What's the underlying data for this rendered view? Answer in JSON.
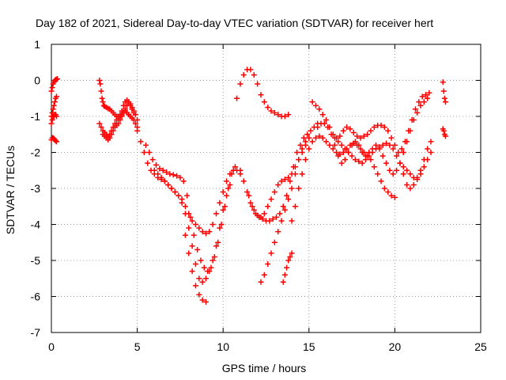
{
  "chart_data": {
    "type": "scatter",
    "title": "Day 182 of 2021, Sidereal Day-to-day VTEC variation (SDTVAR) for receiver hert",
    "xlabel": "GPS time / hours",
    "ylabel": "SDTVAR / TECUs",
    "xlim": [
      0,
      25
    ],
    "ylim": [
      -7,
      1
    ],
    "xticks": [
      0,
      5,
      10,
      15,
      20,
      25
    ],
    "yticks": [
      -7,
      -6,
      -5,
      -4,
      -3,
      -2,
      -1,
      0,
      1
    ],
    "xtick_labels": [
      "0",
      "5",
      "10",
      "15",
      "20",
      "25"
    ],
    "ytick_labels": [
      "-7",
      "-6",
      "-5",
      "-4",
      "-3",
      "-2",
      "-1",
      "0",
      "1"
    ],
    "grid": true,
    "marker": "+",
    "color": "#ff0000",
    "series": [
      {
        "name": "s1",
        "x": [
          0.0,
          0.05,
          0.1,
          0.15,
          0.2,
          0.25,
          0.3,
          0.35
        ],
        "y": [
          -0.3,
          -0.2,
          -0.1,
          -0.05,
          0.0,
          0.02,
          0.03,
          0.04
        ]
      },
      {
        "name": "s2",
        "x": [
          0.0,
          0.05,
          0.1,
          0.15,
          0.2,
          0.25,
          0.3
        ],
        "y": [
          -1.0,
          -0.9,
          -0.8,
          -0.7,
          -0.6,
          -0.5,
          -0.45
        ]
      },
      {
        "name": "s3",
        "x": [
          0.0,
          0.05,
          0.1,
          0.15,
          0.2,
          0.25,
          0.3
        ],
        "y": [
          -1.2,
          -1.1,
          -1.0,
          -1.0,
          -0.95,
          -0.95,
          -1.0
        ]
      },
      {
        "name": "s4",
        "x": [
          0.0,
          0.05,
          0.1,
          0.15,
          0.2,
          0.25,
          0.3
        ],
        "y": [
          -1.65,
          -1.6,
          -1.6,
          -1.62,
          -1.65,
          -1.68,
          -1.7
        ]
      },
      {
        "name": "s5",
        "x": [
          2.8,
          2.85,
          2.9,
          2.95,
          3.0,
          3.05,
          3.1,
          3.2,
          3.3,
          3.4,
          3.5,
          3.6,
          3.7,
          3.8,
          3.9,
          4.0,
          4.1,
          4.2,
          4.3,
          4.4,
          4.5,
          4.6,
          4.7,
          4.8,
          4.9,
          5.0
        ],
        "y": [
          0.0,
          -0.1,
          -0.3,
          -0.5,
          -0.6,
          -0.7,
          -0.72,
          -0.75,
          -0.78,
          -0.8,
          -0.85,
          -0.9,
          -0.95,
          -1.0,
          -1.0,
          -1.0,
          -0.95,
          -0.9,
          -0.85,
          -0.9,
          -0.95,
          -1.0,
          -1.05,
          -1.1,
          -1.2,
          -1.3
        ]
      },
      {
        "name": "s6",
        "x": [
          2.8,
          2.9,
          3.0,
          3.1,
          3.2,
          3.3,
          3.4,
          3.5,
          3.6,
          3.7,
          3.8,
          3.9,
          4.0,
          4.1,
          4.2,
          4.3,
          4.4,
          4.5,
          4.6,
          4.7,
          4.8
        ],
        "y": [
          -1.2,
          -1.3,
          -1.4,
          -1.45,
          -1.5,
          -1.55,
          -1.5,
          -1.4,
          -1.3,
          -1.2,
          -1.1,
          -1.05,
          -0.95,
          -0.85,
          -0.7,
          -0.6,
          -0.55,
          -0.6,
          -0.7,
          -0.8,
          -0.9
        ]
      },
      {
        "name": "s7",
        "x": [
          3.0,
          3.1,
          3.2,
          3.3,
          3.4,
          3.5,
          3.6,
          3.7,
          3.8,
          3.9,
          4.0,
          4.1,
          4.2,
          4.3,
          4.4,
          4.5,
          4.6,
          4.7,
          4.8,
          4.9,
          5.0
        ],
        "y": [
          -1.5,
          -1.55,
          -1.6,
          -1.65,
          -1.6,
          -1.5,
          -1.4,
          -1.3,
          -1.25,
          -1.2,
          -1.1,
          -1.0,
          -0.9,
          -0.8,
          -0.7,
          -0.6,
          -0.65,
          -0.75,
          -0.85,
          -0.95,
          -1.1
        ]
      },
      {
        "name": "s8",
        "x": [
          5.0,
          5.2,
          5.4,
          5.6,
          5.8,
          6.0,
          6.2,
          6.4,
          6.6,
          6.8,
          7.0,
          7.2,
          7.4,
          7.6,
          7.8,
          8.0,
          8.2,
          8.4,
          8.6,
          8.8,
          9.0,
          9.2,
          9.4,
          9.6,
          9.8,
          10.0,
          10.2,
          10.4,
          10.6,
          10.8,
          11.0
        ],
        "y": [
          -1.4,
          -1.7,
          -2.0,
          -2.3,
          -2.5,
          -2.6,
          -2.7,
          -2.75,
          -2.8,
          -2.9,
          -3.0,
          -3.1,
          -3.2,
          -3.3,
          -3.5,
          -3.7,
          -3.9,
          -4.0,
          -4.1,
          -4.2,
          -4.25,
          -4.2,
          -4.0,
          -3.7,
          -3.4,
          -3.1,
          -2.8,
          -2.6,
          -2.5,
          -2.5,
          -2.6
        ]
      },
      {
        "name": "s9",
        "x": [
          5.5,
          5.7,
          5.9,
          6.1,
          6.3,
          6.5,
          6.7,
          6.9,
          7.1,
          7.3,
          7.5,
          7.7,
          7.9,
          8.1,
          8.3,
          8.5,
          8.7,
          8.9,
          9.1,
          9.3,
          9.5,
          9.7,
          9.9,
          10.1,
          10.3,
          10.5,
          10.7
        ],
        "y": [
          -1.8,
          -2.0,
          -2.2,
          -2.35,
          -2.45,
          -2.5,
          -2.55,
          -2.6,
          -2.62,
          -2.65,
          -2.7,
          -2.8,
          -3.2,
          -3.8,
          -4.3,
          -4.7,
          -5.0,
          -5.2,
          -5.3,
          -5.2,
          -4.9,
          -4.5,
          -4.0,
          -3.5,
          -3.0,
          -2.6,
          -2.4
        ]
      },
      {
        "name": "s10",
        "x": [
          6.0,
          6.2,
          6.4,
          6.6,
          6.8,
          7.0,
          7.2,
          7.4,
          7.6,
          7.8,
          8.0,
          8.2,
          8.4,
          8.6,
          8.8,
          9.0,
          9.2,
          9.4,
          9.6,
          9.8,
          10.0,
          10.2,
          10.4
        ],
        "y": [
          -2.5,
          -2.6,
          -2.7,
          -2.8,
          -2.9,
          -3.0,
          -3.1,
          -3.2,
          -3.4,
          -3.7,
          -4.1,
          -4.6,
          -5.1,
          -5.5,
          -5.6,
          -5.5,
          -5.3,
          -5.0,
          -4.6,
          -4.1,
          -3.6,
          -3.2,
          -2.9
        ]
      },
      {
        "name": "s11",
        "x": [
          7.8,
          8.0,
          8.2,
          8.4,
          8.6,
          8.8,
          9.0
        ],
        "y": [
          -4.3,
          -4.8,
          -5.3,
          -5.7,
          -5.95,
          -6.1,
          -6.15
        ]
      },
      {
        "name": "s12",
        "x": [
          10.8,
          11.0,
          11.2,
          11.4,
          11.6,
          11.8,
          12.0,
          12.2,
          12.4,
          12.6,
          12.8,
          13.0,
          13.2,
          13.4,
          13.6,
          13.8
        ],
        "y": [
          -0.5,
          -0.1,
          0.15,
          0.3,
          0.3,
          0.15,
          -0.1,
          -0.4,
          -0.6,
          -0.75,
          -0.85,
          -0.9,
          -0.95,
          -1.0,
          -1.0,
          -0.95
        ]
      },
      {
        "name": "s13",
        "x": [
          11.0,
          11.2,
          11.4,
          11.6,
          11.8,
          12.0,
          12.2,
          12.4,
          12.6,
          12.8,
          13.0,
          13.2,
          13.4,
          13.6,
          13.8,
          14.0,
          14.2,
          14.4,
          14.6,
          14.8,
          15.0
        ],
        "y": [
          -2.5,
          -2.8,
          -3.1,
          -3.4,
          -3.6,
          -3.75,
          -3.8,
          -3.7,
          -3.5,
          -3.3,
          -3.1,
          -2.9,
          -2.8,
          -2.75,
          -2.7,
          -2.6,
          -2.4,
          -2.2,
          -2.0,
          -1.8,
          -1.6
        ]
      },
      {
        "name": "s14",
        "x": [
          11.5,
          11.7,
          11.9,
          12.1,
          12.3,
          12.5,
          12.7,
          12.9,
          13.1,
          13.3,
          13.5,
          13.7,
          13.9,
          14.1,
          14.3,
          14.5,
          14.7,
          14.9,
          15.1,
          15.3,
          15.5
        ],
        "y": [
          -3.2,
          -3.5,
          -3.7,
          -3.8,
          -3.85,
          -3.9,
          -3.9,
          -3.85,
          -3.8,
          -3.7,
          -3.5,
          -3.2,
          -2.8,
          -2.4,
          -2.0,
          -1.8,
          -1.6,
          -1.5,
          -1.4,
          -1.3,
          -1.2
        ]
      },
      {
        "name": "s15",
        "x": [
          12.2,
          12.4,
          12.6,
          12.8,
          13.0,
          13.2,
          13.4,
          13.6,
          13.8,
          14.0,
          14.2,
          14.4,
          14.6,
          14.8,
          15.0
        ],
        "y": [
          -5.6,
          -5.4,
          -5.1,
          -4.8,
          -4.5,
          -4.2,
          -3.9,
          -3.6,
          -3.3,
          -3.0,
          -2.6,
          -2.2,
          -1.9,
          -1.7,
          -1.6
        ]
      },
      {
        "name": "s16",
        "x": [
          13.5,
          13.6,
          13.7,
          13.8,
          13.9,
          14.0
        ],
        "y": [
          -5.6,
          -5.4,
          -5.2,
          -5.0,
          -4.9,
          -4.8
        ]
      },
      {
        "name": "s17",
        "x": [
          14.0,
          14.2,
          14.4,
          14.6,
          14.8,
          15.0,
          15.2,
          15.4,
          15.6,
          15.8,
          16.0,
          16.2,
          16.4,
          16.6,
          16.8,
          17.0,
          17.2,
          17.4,
          17.6,
          17.8,
          18.0,
          18.2,
          18.4,
          18.6,
          18.8,
          19.0,
          19.2,
          19.4,
          19.6,
          19.8,
          20.0
        ],
        "y": [
          -3.9,
          -3.5,
          -3.0,
          -2.6,
          -2.2,
          -1.9,
          -1.7,
          -1.6,
          -1.55,
          -1.6,
          -1.7,
          -1.8,
          -1.9,
          -2.0,
          -2.05,
          -2.0,
          -1.9,
          -1.8,
          -1.75,
          -1.8,
          -1.9,
          -2.0,
          -2.1,
          -2.2,
          -2.4,
          -2.6,
          -2.8,
          -3.0,
          -3.1,
          -3.2,
          -3.25
        ]
      },
      {
        "name": "s18",
        "x": [
          15.2,
          15.4,
          15.6,
          15.8,
          16.0,
          16.2,
          16.4,
          16.6,
          16.8,
          17.0,
          17.2,
          17.4,
          17.6,
          17.8,
          18.0,
          18.2,
          18.4,
          18.6,
          18.8,
          19.0,
          19.2,
          19.4,
          19.6,
          19.8,
          20.0,
          20.2,
          20.4,
          20.6,
          20.8,
          21.0,
          21.2,
          21.4,
          21.6,
          21.8,
          22.0
        ],
        "y": [
          -0.6,
          -0.7,
          -0.8,
          -0.95,
          -1.1,
          -1.3,
          -1.5,
          -1.6,
          -1.55,
          -1.4,
          -1.3,
          -1.35,
          -1.45,
          -1.55,
          -1.6,
          -1.55,
          -1.5,
          -1.4,
          -1.3,
          -1.25,
          -1.25,
          -1.3,
          -1.4,
          -1.6,
          -1.8,
          -2.0,
          -1.9,
          -1.7,
          -1.4,
          -1.1,
          -0.8,
          -0.6,
          -0.45,
          -0.4,
          -0.35
        ]
      },
      {
        "name": "s19",
        "x": [
          15.5,
          15.7,
          15.9,
          16.1,
          16.3,
          16.5,
          16.7,
          16.9,
          17.1,
          17.3,
          17.5,
          17.7,
          17.9,
          18.1,
          18.3,
          18.5,
          18.7,
          18.9,
          19.1,
          19.3,
          19.5,
          19.7,
          19.9,
          20.1,
          20.3,
          20.5,
          20.7,
          20.9,
          21.1,
          21.3,
          21.5,
          21.7,
          21.9
        ],
        "y": [
          -1.3,
          -1.2,
          -1.2,
          -1.3,
          -1.5,
          -1.8,
          -2.1,
          -2.3,
          -2.2,
          -2.0,
          -1.8,
          -1.7,
          -1.8,
          -2.0,
          -2.1,
          -2.0,
          -1.9,
          -1.8,
          -1.9,
          -2.1,
          -2.3,
          -2.5,
          -2.6,
          -2.5,
          -2.3,
          -2.0,
          -1.7,
          -1.4,
          -1.1,
          -0.9,
          -0.7,
          -0.6,
          -0.5
        ]
      },
      {
        "name": "s20",
        "x": [
          16.5,
          16.7,
          16.9,
          17.1,
          17.3,
          17.5,
          17.7,
          17.9,
          18.1,
          18.3,
          18.5,
          18.7,
          18.9,
          19.1,
          19.3,
          19.5,
          19.7,
          19.9,
          20.1,
          20.3,
          20.5,
          20.7,
          20.9,
          21.1,
          21.3,
          21.5,
          21.7,
          21.9,
          22.1
        ],
        "y": [
          -1.6,
          -1.7,
          -1.8,
          -1.9,
          -2.0,
          -2.1,
          -2.2,
          -2.25,
          -2.3,
          -2.2,
          -2.1,
          -2.0,
          -1.9,
          -1.85,
          -1.8,
          -1.75,
          -1.8,
          -1.9,
          -2.1,
          -2.3,
          -2.6,
          -2.9,
          -3.0,
          -2.9,
          -2.7,
          -2.5,
          -2.2,
          -1.9,
          -1.7
        ]
      },
      {
        "name": "s21",
        "x": [
          20.5,
          20.7,
          20.9,
          21.1,
          21.3,
          21.5,
          21.7,
          21.9,
          22.1
        ],
        "y": [
          -2.4,
          -2.5,
          -2.6,
          -2.7,
          -2.75,
          -2.6,
          -2.4,
          -2.2,
          -2.0
        ]
      },
      {
        "name": "s22",
        "x": [
          22.8,
          22.85,
          22.9,
          22.95
        ],
        "y": [
          -0.05,
          -0.3,
          -0.5,
          -0.6
        ]
      },
      {
        "name": "s23",
        "x": [
          22.8,
          22.85,
          22.9,
          22.95
        ],
        "y": [
          -1.35,
          -1.4,
          -1.5,
          -1.55
        ]
      }
    ]
  }
}
